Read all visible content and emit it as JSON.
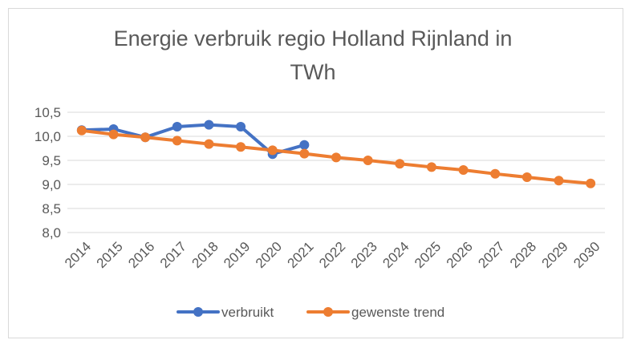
{
  "chart_data": {
    "type": "line",
    "title_lines": [
      "Energie verbruik regio Holland Rijnland in",
      "TWh"
    ],
    "x": [
      "2014",
      "2015",
      "2016",
      "2017",
      "2018",
      "2019",
      "2020",
      "2021",
      "2022",
      "2023",
      "2024",
      "2025",
      "2026",
      "2027",
      "2028",
      "2029",
      "2030"
    ],
    "y_ticks": [
      "8,0",
      "8,5",
      "9,0",
      "9,5",
      "10,0",
      "10,5"
    ],
    "ylim": [
      8.0,
      10.5
    ],
    "grid": true,
    "legend_position": "bottom",
    "series": [
      {
        "name": "verbruikt",
        "color": "#4472c4",
        "values": [
          10.13,
          10.15,
          9.98,
          10.2,
          10.24,
          10.2,
          9.63,
          9.82,
          null,
          null,
          null,
          null,
          null,
          null,
          null,
          null,
          null
        ]
      },
      {
        "name": "gewenste trend",
        "color": "#ed7d31",
        "values": [
          10.12,
          10.04,
          9.98,
          9.91,
          9.84,
          9.78,
          9.71,
          9.64,
          9.56,
          9.5,
          9.43,
          9.36,
          9.3,
          9.22,
          9.15,
          9.08,
          9.02
        ]
      }
    ]
  }
}
